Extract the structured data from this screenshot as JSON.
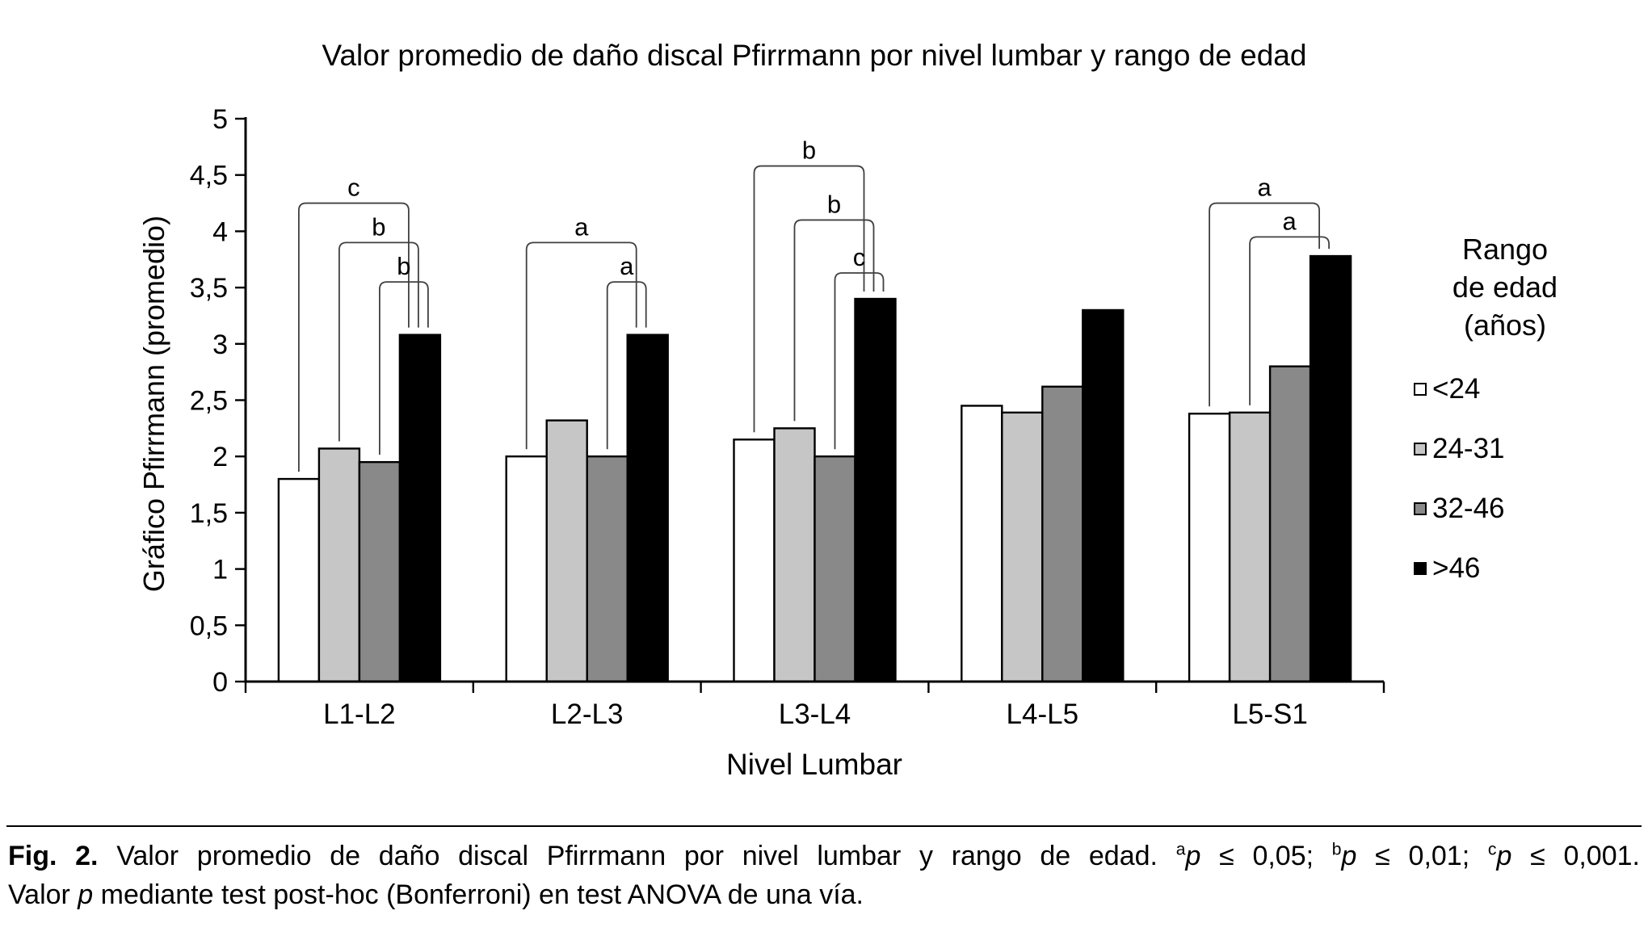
{
  "chart_data": {
    "type": "bar",
    "title": "Valor promedio de daño discal Pfirrmann por nivel lumbar y rango de edad",
    "xlabel": "Nivel Lumbar",
    "ylabel": "Gráfico Pfirrmann (promedio)",
    "ylim": [
      0,
      5
    ],
    "ytick_labels": [
      "0",
      "0,5",
      "1",
      "1,5",
      "2",
      "2,5",
      "3",
      "3,5",
      "4",
      "4,5",
      "5"
    ],
    "categories": [
      "L1-L2",
      "L2-L3",
      "L3-L4",
      "L4-L5",
      "L5-S1"
    ],
    "series": [
      {
        "name": "<24",
        "color": "#ffffff",
        "values": [
          1.8,
          2.0,
          2.15,
          2.45,
          2.38
        ]
      },
      {
        "name": "24-31",
        "color": "#c6c6c6",
        "values": [
          2.07,
          2.32,
          2.25,
          2.39,
          2.39
        ]
      },
      {
        "name": "32-46",
        "color": "#898989",
        "values": [
          1.95,
          2.0,
          2.0,
          2.62,
          2.8
        ]
      },
      {
        "name": ">46",
        "color": "#000000",
        "values": [
          3.08,
          3.08,
          3.4,
          3.3,
          3.78
        ]
      }
    ],
    "legend_title_lines": [
      "Rango",
      "de edad",
      "(años)"
    ],
    "legend_position": "right",
    "grid": false,
    "significance_brackets": [
      {
        "group": 0,
        "from": 0,
        "to": 3,
        "top": 4.25,
        "label": "c"
      },
      {
        "group": 0,
        "from": 1,
        "to": 3,
        "top": 3.9,
        "label": "b"
      },
      {
        "group": 0,
        "from": 2,
        "to": 3,
        "top": 3.55,
        "label": "b"
      },
      {
        "group": 1,
        "from": 0,
        "to": 3,
        "top": 3.9,
        "label": "a"
      },
      {
        "group": 1,
        "from": 2,
        "to": 3,
        "top": 3.55,
        "label": "a"
      },
      {
        "group": 2,
        "from": 0,
        "to": 3,
        "top": 4.58,
        "label": "b"
      },
      {
        "group": 2,
        "from": 1,
        "to": 3,
        "top": 4.1,
        "label": "b"
      },
      {
        "group": 2,
        "from": 2,
        "to": 3,
        "top": 3.63,
        "label": "c"
      },
      {
        "group": 4,
        "from": 0,
        "to": 3,
        "top": 4.25,
        "label": "a"
      },
      {
        "group": 4,
        "from": 1,
        "to": 3,
        "top": 3.95,
        "label": "a"
      }
    ]
  },
  "caption": {
    "fig_label": "Fig. 2.",
    "body": "Valor promedio de daño discal Pfirrmann por nivel lumbar y rango de edad.",
    "sig": [
      {
        "sup": "a",
        "p": "p",
        "rest": " ≤ 0,05;"
      },
      {
        "sup": "b",
        "p": "p",
        "rest": " ≤ 0,01;"
      },
      {
        "sup": "c",
        "p": "p",
        "rest": " ≤ 0,001."
      }
    ],
    "line2_pre": "Valor ",
    "line2_p": "p",
    "line2_post": " mediante test post-hoc (Bonferroni) en test ANOVA de una vía."
  }
}
